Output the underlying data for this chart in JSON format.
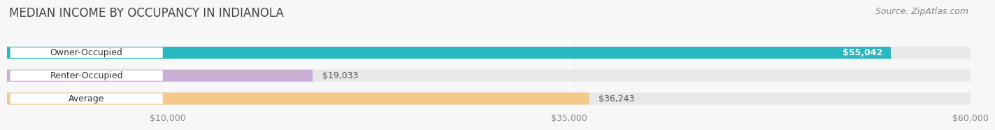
{
  "title": "MEDIAN INCOME BY OCCUPANCY IN INDIANOLA",
  "source": "Source: ZipAtlas.com",
  "categories": [
    "Owner-Occupied",
    "Renter-Occupied",
    "Average"
  ],
  "values": [
    55042,
    19033,
    36243
  ],
  "value_labels": [
    "$55,042",
    "$19,033",
    "$36,243"
  ],
  "bar_colors": [
    "#2ab8c0",
    "#c9aed6",
    "#f5c98a"
  ],
  "bar_track_color": "#e8e8e8",
  "xlim": [
    0,
    60000
  ],
  "xticks": [
    10000,
    35000,
    60000
  ],
  "xtick_labels": [
    "$10,000",
    "$35,000",
    "$60,000"
  ],
  "background_color": "#f7f7f7",
  "title_fontsize": 12,
  "label_fontsize": 9,
  "value_fontsize": 9,
  "source_fontsize": 9,
  "label_bg_color": "#ffffff",
  "value_inside_color": "#ffffff",
  "value_outside_color": "#555555"
}
